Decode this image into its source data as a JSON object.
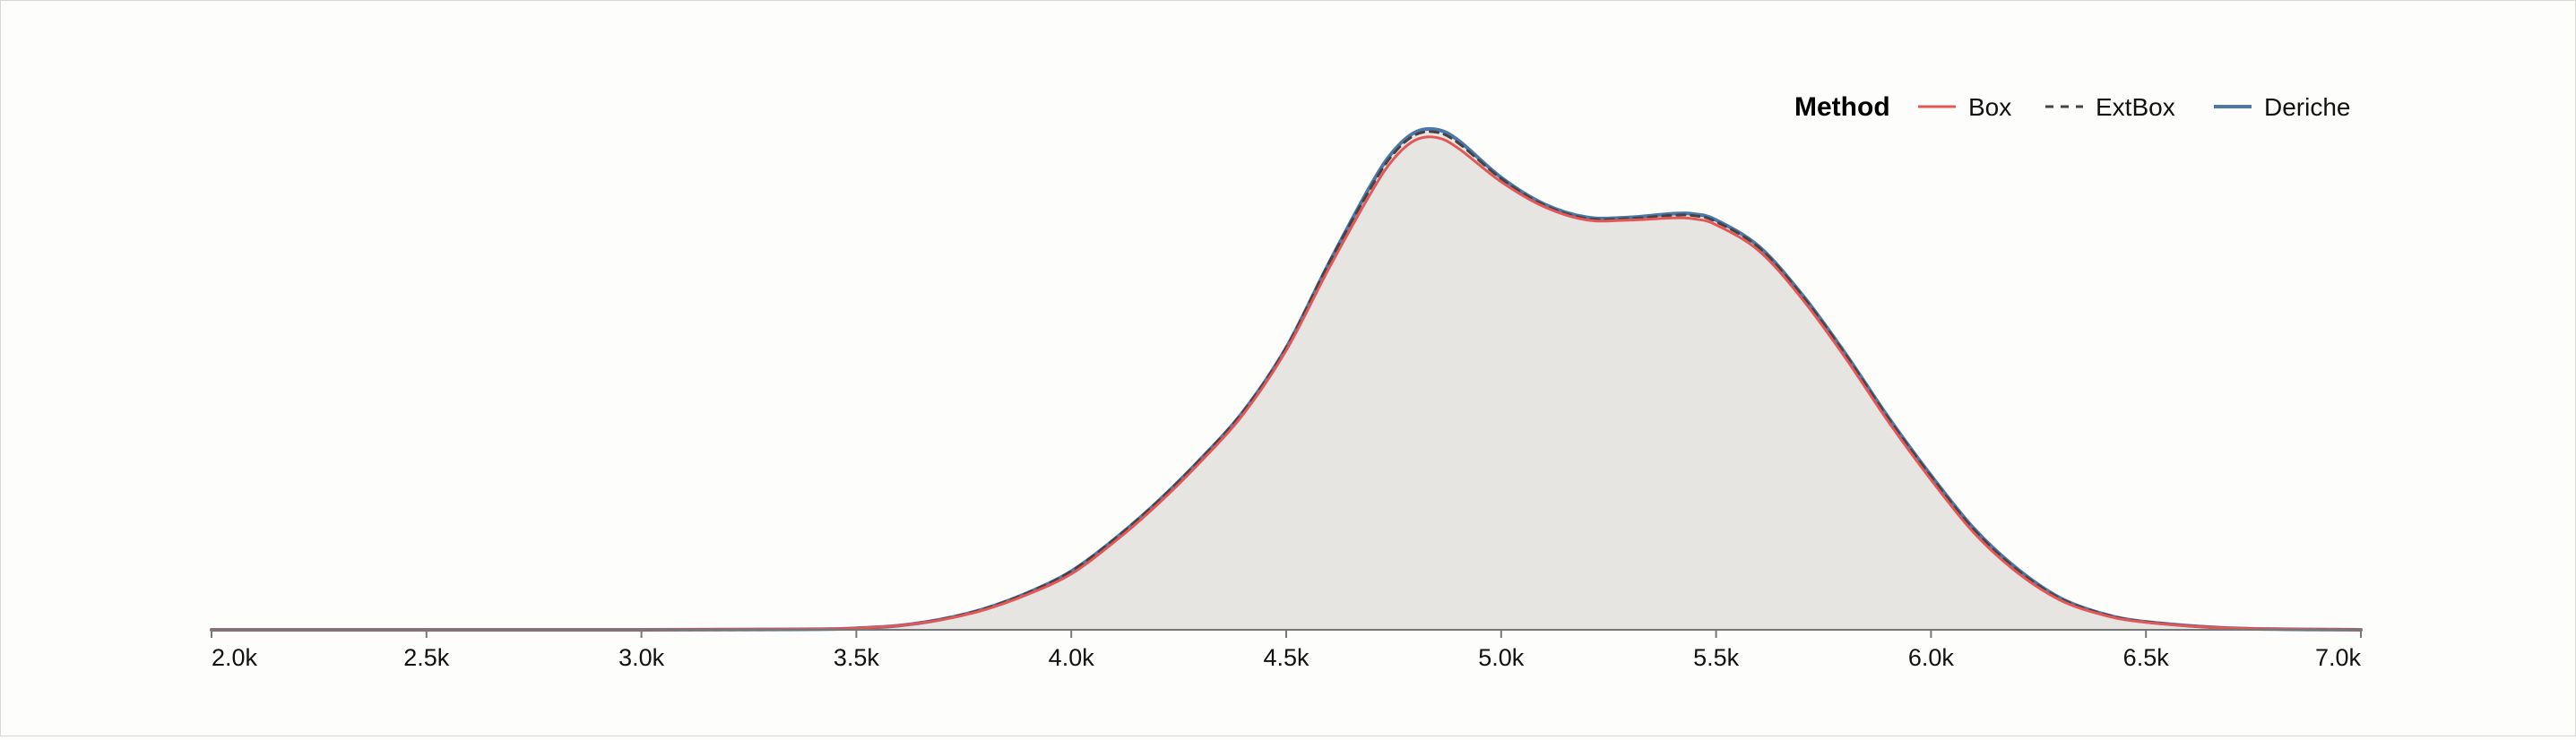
{
  "chart_data": {
    "type": "area",
    "title": "",
    "xlabel": "",
    "ylabel": "",
    "xlim": [
      2000,
      7000
    ],
    "ylim": [
      0,
      1.0
    ],
    "grid": false,
    "x_ticks": [
      2000,
      2500,
      3000,
      3500,
      4000,
      4500,
      5000,
      5500,
      6000,
      6500,
      7000
    ],
    "x_tick_labels": [
      "2.0k",
      "2.5k",
      "3.0k",
      "3.5k",
      "4.0k",
      "4.5k",
      "5.0k",
      "5.5k",
      "6.0k",
      "6.5k",
      "7.0k"
    ],
    "legend": {
      "title": "Method",
      "placement": "top-right",
      "entries": [
        {
          "name": "Box",
          "color": "#e45756",
          "dash": "solid"
        },
        {
          "name": "ExtBox",
          "color": "#444444",
          "dash": "dashed"
        },
        {
          "name": "Deriche",
          "color": "#4c78a8",
          "dash": "solid"
        }
      ]
    },
    "fill_color": "#e6e5e2",
    "x": [
      2000,
      3000,
      3400,
      3500,
      3600,
      3700,
      3800,
      3900,
      4000,
      4100,
      4200,
      4300,
      4400,
      4500,
      4600,
      4700,
      4750,
      4800,
      4850,
      4900,
      5000,
      5100,
      5200,
      5300,
      5400,
      5450,
      5500,
      5600,
      5700,
      5800,
      5900,
      6000,
      6100,
      6200,
      6300,
      6400,
      6500,
      6700,
      7000
    ],
    "series": [
      {
        "name": "Deriche",
        "values": [
          0,
          0,
          0.001,
          0.003,
          0.008,
          0.02,
          0.04,
          0.07,
          0.11,
          0.17,
          0.24,
          0.32,
          0.41,
          0.53,
          0.69,
          0.84,
          0.9,
          0.935,
          0.94,
          0.92,
          0.85,
          0.8,
          0.775,
          0.775,
          0.782,
          0.781,
          0.77,
          0.72,
          0.63,
          0.52,
          0.4,
          0.29,
          0.19,
          0.115,
          0.06,
          0.03,
          0.015,
          0.003,
          0
        ]
      },
      {
        "name": "ExtBox",
        "values": [
          0,
          0,
          0.001,
          0.003,
          0.008,
          0.02,
          0.04,
          0.07,
          0.11,
          0.17,
          0.24,
          0.32,
          0.41,
          0.53,
          0.69,
          0.835,
          0.895,
          0.93,
          0.935,
          0.915,
          0.848,
          0.798,
          0.773,
          0.773,
          0.779,
          0.778,
          0.767,
          0.718,
          0.628,
          0.518,
          0.398,
          0.288,
          0.188,
          0.113,
          0.059,
          0.03,
          0.015,
          0.003,
          0
        ]
      },
      {
        "name": "Box",
        "values": [
          0,
          0,
          0.001,
          0.003,
          0.008,
          0.019,
          0.038,
          0.067,
          0.105,
          0.165,
          0.235,
          0.315,
          0.405,
          0.525,
          0.68,
          0.825,
          0.885,
          0.92,
          0.925,
          0.905,
          0.842,
          0.795,
          0.77,
          0.77,
          0.774,
          0.772,
          0.761,
          0.712,
          0.622,
          0.512,
          0.392,
          0.282,
          0.182,
          0.108,
          0.056,
          0.028,
          0.014,
          0.003,
          0
        ]
      }
    ]
  }
}
